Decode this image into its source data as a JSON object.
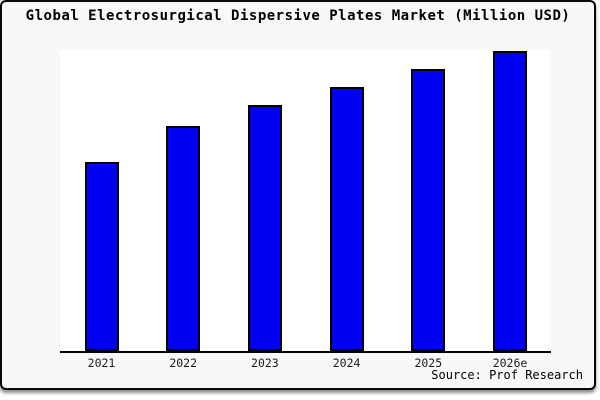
{
  "chart_data": {
    "type": "bar",
    "title": "Global Electrosurgical Dispersive Plates Market (Million USD)",
    "categories": [
      "2021",
      "2022",
      "2023",
      "2024",
      "2025",
      "2026e"
    ],
    "values": [
      63,
      75,
      82,
      88,
      94,
      100
    ],
    "values_note": "relative scale estimated from bar heights; no y-axis tick labels are shown in the chart",
    "ylim": [
      0,
      100.5
    ],
    "grid": false,
    "legend": "none",
    "xlabel": "",
    "ylabel": "",
    "bar_color": "#0000f5",
    "bar_border_color": "#000000",
    "plot_background": "#ffffff",
    "canvas_background": "#f8f8f8",
    "source": "Source: Prof Research"
  }
}
